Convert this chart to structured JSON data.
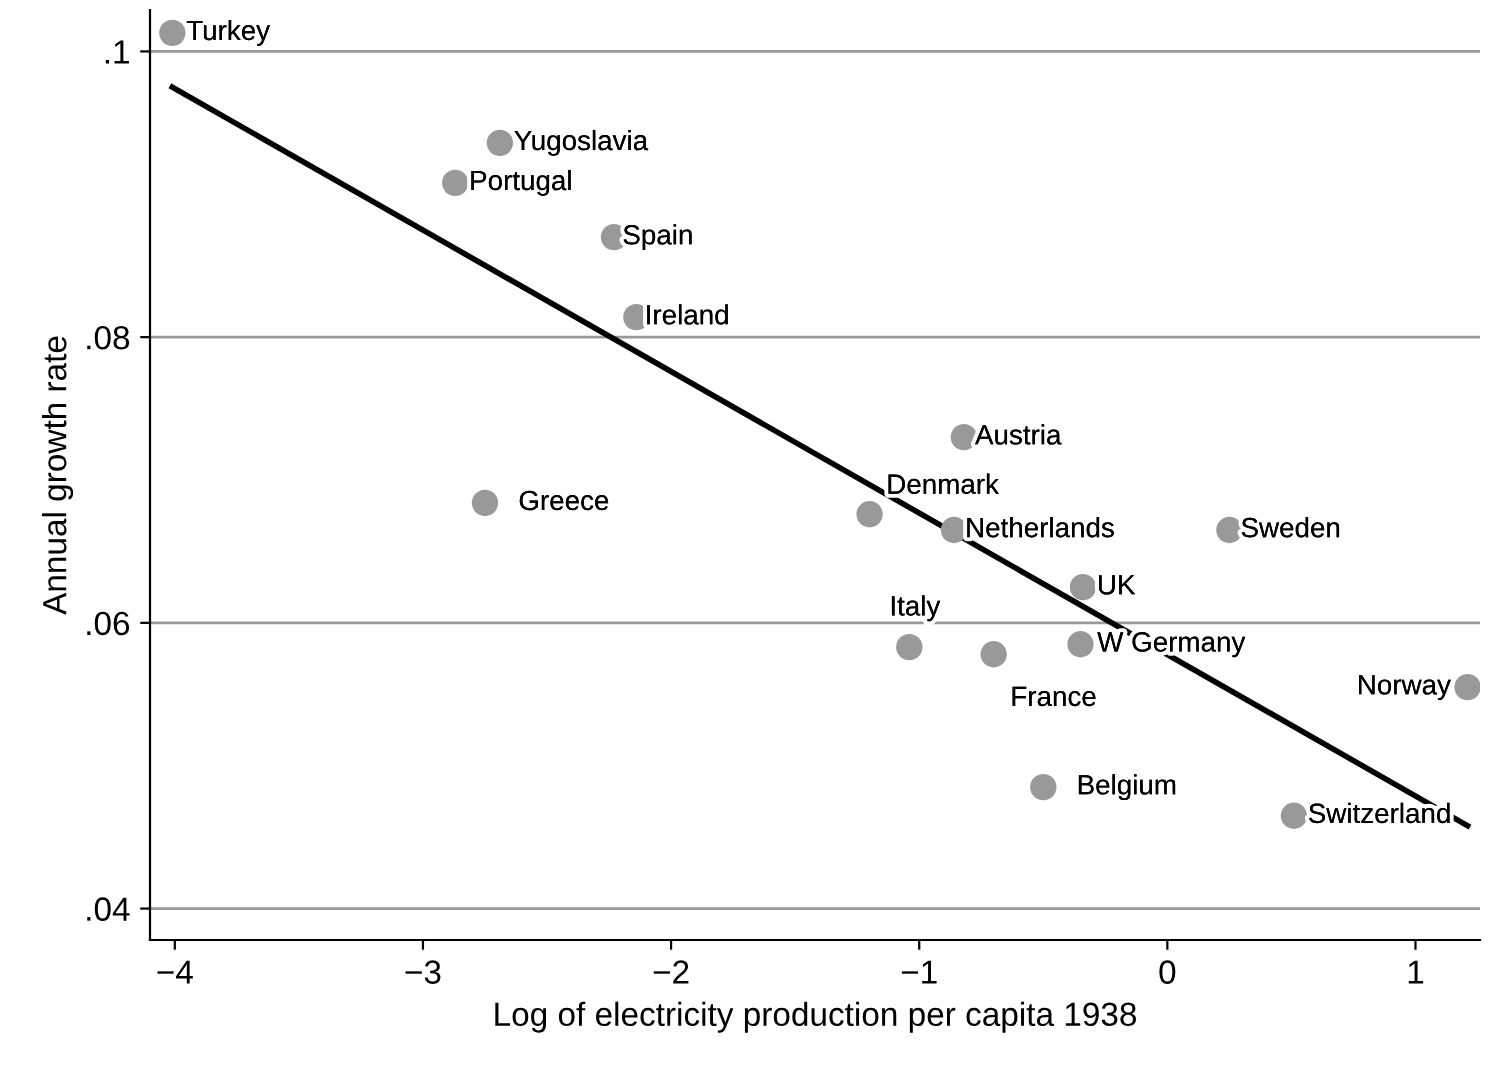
{
  "chart_data": {
    "type": "scatter",
    "xlabel": "Log of electricity production per capita 1938",
    "ylabel": "Annual growth rate",
    "series": [
      {
        "color": "#999999",
        "marker": "circle",
        "x": [
          -4.01,
          -2.69,
          -2.87,
          -2.23,
          -2.14,
          -0.82,
          -2.75,
          -1.2,
          -0.86,
          0.25,
          -0.34,
          -1.04,
          -0.7,
          -0.35,
          1.21,
          -0.5,
          0.51
        ],
        "values": [
          0.1013,
          0.0936,
          0.0908,
          0.087,
          0.0814,
          0.073,
          0.0684,
          0.0676,
          0.0665,
          0.0665,
          0.0625,
          0.0583,
          0.0578,
          0.0585,
          0.0555,
          0.0485,
          0.0465
        ]
      },
      {
        "type": "line",
        "color": "#000000",
        "x": [
          -4.01,
          1.21
        ],
        "values": [
          0.0975,
          0.0458
        ]
      }
    ],
    "annotations": [
      {
        "text": "Turkey",
        "x": -4.01,
        "y": 0.1013
      },
      {
        "text": "Yugoslavia",
        "x": -2.69,
        "y": 0.0936
      },
      {
        "text": "Portugal",
        "x": -2.87,
        "y": 0.0908
      },
      {
        "text": "Spain",
        "x": -2.23,
        "y": 0.087
      },
      {
        "text": "Ireland",
        "x": -2.14,
        "y": 0.0814
      },
      {
        "text": "Austria",
        "x": -0.82,
        "y": 0.073
      },
      {
        "text": "Greece",
        "x": -2.75,
        "y": 0.0684
      },
      {
        "text": "Denmark",
        "x": -1.2,
        "y": 0.0676
      },
      {
        "text": "Netherlands",
        "x": -0.86,
        "y": 0.0665
      },
      {
        "text": "Sweden",
        "x": 0.25,
        "y": 0.0665
      },
      {
        "text": "UK",
        "x": -0.34,
        "y": 0.0625
      },
      {
        "text": "Italy",
        "x": -1.04,
        "y": 0.0583
      },
      {
        "text": "France",
        "x": -0.7,
        "y": 0.0578
      },
      {
        "text": "W Germany",
        "x": -0.35,
        "y": 0.0585
      },
      {
        "text": "Norway",
        "x": 1.21,
        "y": 0.0555
      },
      {
        "text": "Belgium",
        "x": -0.5,
        "y": 0.0485
      },
      {
        "text": "Switzerland",
        "x": 0.51,
        "y": 0.0465
      }
    ],
    "xlim": [
      -4.1,
      1.26
    ],
    "ylim": [
      0.0378,
      0.1029
    ],
    "xticks": [
      {
        "value": -4,
        "label": "−4"
      },
      {
        "value": -3,
        "label": "−3"
      },
      {
        "value": -2,
        "label": "−2"
      },
      {
        "value": -1,
        "label": "−1"
      },
      0,
      1
    ],
    "yticks": [
      {
        "value": 0.04,
        "label": ".04"
      },
      {
        "value": 0.06,
        "label": ".06"
      },
      {
        "value": 0.08,
        "label": ".08"
      },
      {
        "value": 0.1,
        "label": ".1"
      }
    ],
    "grid": "y",
    "legend": false
  }
}
